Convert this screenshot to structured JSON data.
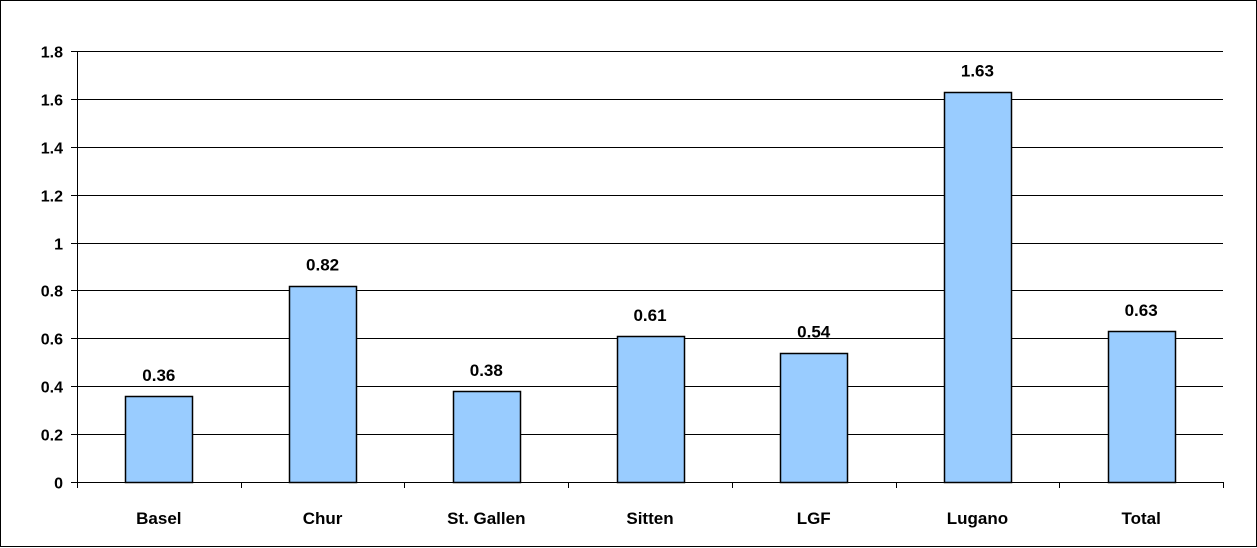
{
  "chart_data": {
    "type": "bar",
    "categories": [
      "Basel",
      "Chur",
      "St. Gallen",
      "Sitten",
      "LGF",
      "Lugano",
      "Total"
    ],
    "values": [
      0.36,
      0.82,
      0.38,
      0.61,
      0.54,
      1.63,
      0.63
    ],
    "value_labels": [
      "0.36",
      "0.82",
      "0.38",
      "0.61",
      "0.54",
      "1.63",
      "0.63"
    ],
    "yticks": [
      "0",
      "0.2",
      "0.4",
      "0.6",
      "0.8",
      "1",
      "1.2",
      "1.4",
      "1.6",
      "1.8"
    ],
    "ylim": [
      0,
      1.8
    ],
    "title": "",
    "xlabel": "",
    "ylabel": "",
    "grid": true,
    "legend": "none",
    "colors": {
      "bar_fill": "#99ccff",
      "bar_stroke": "#000000",
      "grid": "#000000"
    }
  }
}
